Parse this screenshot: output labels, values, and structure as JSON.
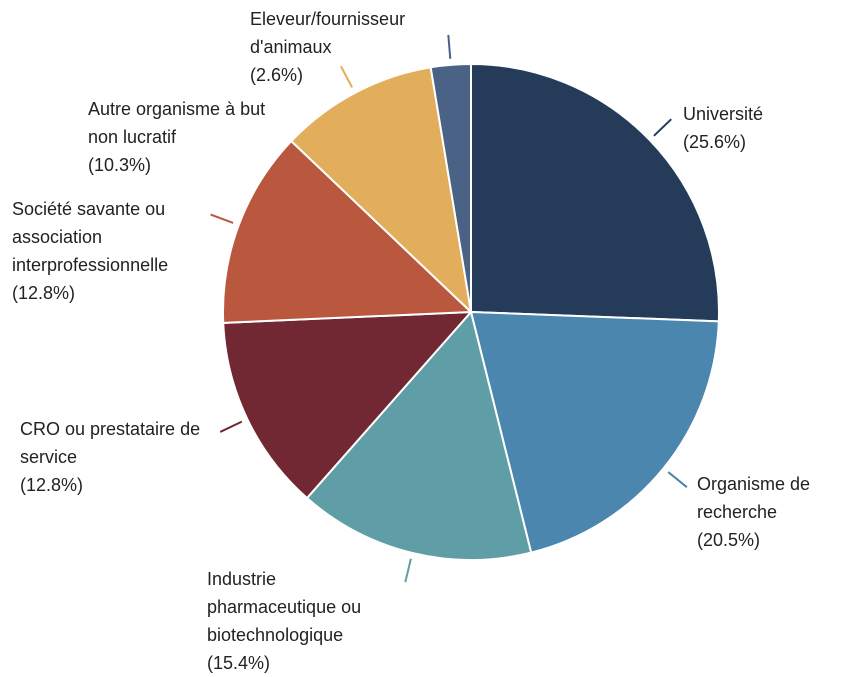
{
  "chart_data": {
    "type": "pie",
    "categories": [
      "Université",
      "Organisme de recherche",
      "Industrie pharmaceutique ou biotechnologique",
      "CRO ou prestataire de service",
      "Société savante ou association interprofessionnelle",
      "Autre organisme à but non lucratif",
      "Eleveur/fournisseur d'animaux"
    ],
    "values": [
      25.6,
      20.5,
      15.4,
      12.8,
      12.8,
      10.3,
      2.6
    ],
    "value_labels": [
      "(25.6%)",
      "(20.5%)",
      "(15.4%)",
      "(12.8%)",
      "(12.8%)",
      "(10.3%)",
      "(2.6%)"
    ],
    "colors": [
      "#243b5a",
      "#4a86ae",
      "#5f9ea6",
      "#722833",
      "#b9573f",
      "#e3ae5c",
      "#4a6285"
    ]
  }
}
